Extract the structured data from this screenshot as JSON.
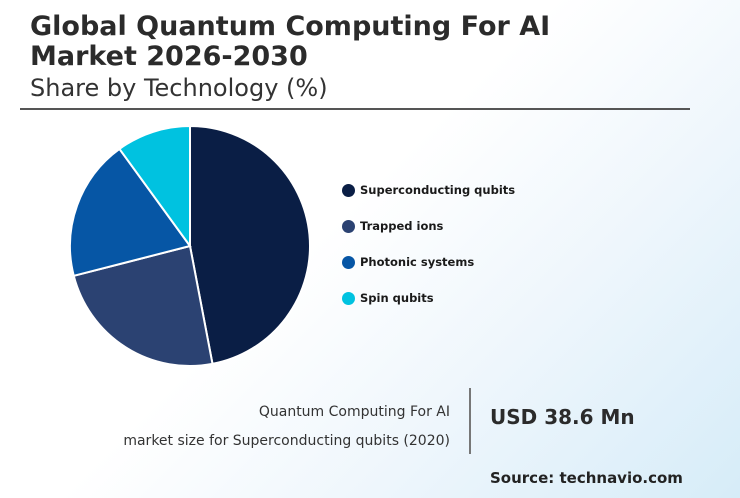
{
  "header": {
    "title_line1": "Global Quantum Computing For AI",
    "title_line2": "Market 2026-2030",
    "subtitle": "Share by Technology (%)"
  },
  "chart_data": {
    "type": "pie",
    "title": "Global Quantum Computing For AI Market 2026-2030",
    "subtitle": "Share by Technology (%)",
    "legend_position": "right",
    "slices": [
      {
        "label": "Superconducting qubits",
        "value": 47,
        "color": "#0a1e45"
      },
      {
        "label": "Trapped ions",
        "value": 24,
        "color": "#2b4272"
      },
      {
        "label": "Photonic systems",
        "value": 19,
        "color": "#0656a5"
      },
      {
        "label": "Spin qubits",
        "value": 10,
        "color": "#00c2e0"
      }
    ]
  },
  "stat": {
    "label_line1": "Quantum Computing For AI",
    "label_line2": "market size for Superconducting qubits (2020)",
    "value": "USD 38.6 Mn"
  },
  "footer": {
    "source": "Source: technavio.com"
  }
}
